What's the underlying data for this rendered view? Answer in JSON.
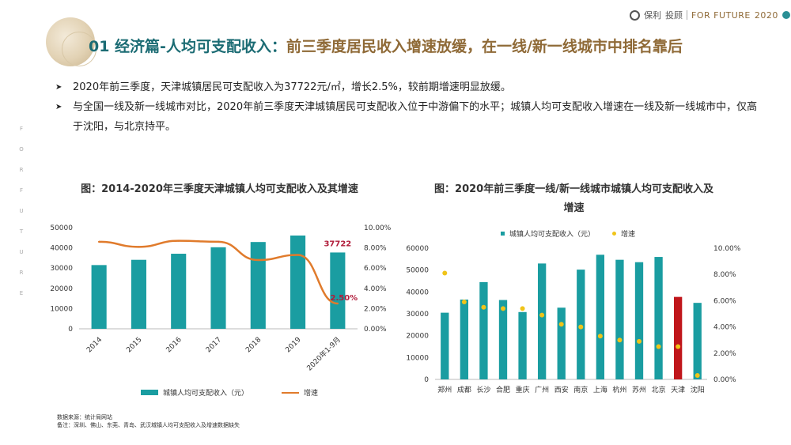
{
  "header": {
    "title_lead": "01 经济篇-人均可支配收入：",
    "title_rest": "前三季度居民收入增速放缓，在一线/新一线城市中排名靠后",
    "logo_brand": "保利",
    "logo_sub": "投顾",
    "logo_tagline": "FOR FUTURE",
    "logo_year": "2020"
  },
  "side_text": [
    "F",
    "O",
    "R",
    "F",
    "U",
    "T",
    "U",
    "R",
    "E"
  ],
  "bullets": [
    "2020年前三季度，天津城镇居民可支配收入为37722元/㎡，增长2.5%，较前期增速明显放缓。",
    "与全国一线及新一线城市对比，2020年前三季度天津城镇居民可支配收入位于中游偏下的水平；城镇人均可支配收入增速在一线及新一线城市中，仅高于沈阳，与北京持平。"
  ],
  "chart_left_title": "图：2014-2020年三季度天津城镇人均可支配收入及其增速",
  "chart_right_title": "图：2020年前三季度一线/新一线城市城镇人均可支配收入及增速",
  "chart_data": [
    {
      "type": "bar",
      "categories": [
        "2014",
        "2015",
        "2016",
        "2017",
        "2018",
        "2019",
        "2020年1-9月"
      ],
      "series": [
        {
          "name": "城镇人均可支配收入（元）",
          "kind": "bar",
          "axis": "left",
          "color": "#1a9da1",
          "values": [
            31500,
            34100,
            37100,
            40300,
            42900,
            46100,
            37722
          ]
        },
        {
          "name": "增速",
          "kind": "line",
          "axis": "right",
          "color": "#e07b2c",
          "values": [
            0.086,
            0.081,
            0.087,
            0.086,
            0.068,
            0.073,
            0.025
          ]
        }
      ],
      "y_left": {
        "min": 0,
        "max": 50000,
        "ticks": [
          0,
          10000,
          20000,
          30000,
          40000,
          50000
        ]
      },
      "y_right": {
        "min": 0,
        "max": 0.1,
        "ticks": [
          "0.00%",
          "2.00%",
          "4.00%",
          "6.00%",
          "8.00%",
          "10.00%"
        ]
      },
      "data_labels": {
        "bar_last": "37722",
        "line_last": "2.50%"
      },
      "legend": "bottom"
    },
    {
      "type": "bar",
      "categories": [
        "郑州",
        "成都",
        "长沙",
        "合肥",
        "重庆",
        "广州",
        "西安",
        "南京",
        "上海",
        "杭州",
        "苏州",
        "北京",
        "天津",
        "沈阳"
      ],
      "series": [
        {
          "name": "城镇人均可支配收入（元）",
          "kind": "bar",
          "axis": "left",
          "color": "#1a9da1",
          "values": [
            30500,
            36500,
            44500,
            36300,
            30800,
            53000,
            32800,
            50200,
            57000,
            54700,
            53600,
            56000,
            37722,
            35000
          ]
        },
        {
          "name": "增速",
          "kind": "scatter",
          "axis": "right",
          "color": "#f0c419",
          "values": [
            0.081,
            0.059,
            0.055,
            0.054,
            0.054,
            0.049,
            0.042,
            0.04,
            0.033,
            0.03,
            0.029,
            0.025,
            0.025,
            0.003
          ]
        }
      ],
      "highlight": {
        "index": 12,
        "color": "#c0161b"
      },
      "y_left": {
        "min": 0,
        "max": 60000,
        "ticks": [
          0,
          10000,
          20000,
          30000,
          40000,
          50000,
          60000
        ]
      },
      "y_right": {
        "min": 0,
        "max": 0.1,
        "ticks": [
          "0.00%",
          "2.00%",
          "4.00%",
          "6.00%",
          "8.00%",
          "10.00%"
        ]
      },
      "legend": "top"
    }
  ],
  "footnote": {
    "source": "数据来源：统计局网站",
    "note": "备注：深圳、佛山、东莞、青岛、武汉城镇人均可支配收入及增速数据缺失"
  }
}
